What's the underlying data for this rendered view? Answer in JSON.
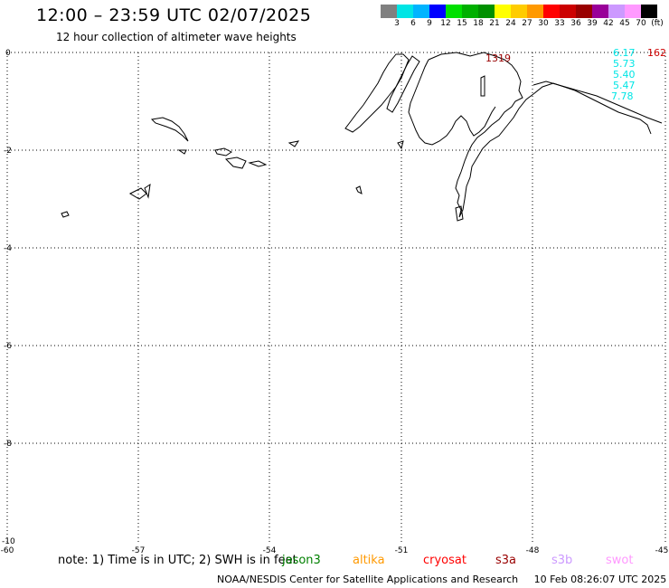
{
  "header": {
    "title": "12:00 – 23:59 UTC 02/07/2025",
    "subtitle": "12 hour collection of altimeter wave heights"
  },
  "color_scale": {
    "colors": [
      "#808080",
      "#00e5e5",
      "#00b4ff",
      "#0000ff",
      "#00e000",
      "#00b000",
      "#009000",
      "#ffff00",
      "#ffcc00",
      "#ff9900",
      "#ff0000",
      "#cc0000",
      "#990000",
      "#990099",
      "#cc99ff",
      "#ff99ff",
      "#000000"
    ],
    "ticks": [
      "3",
      "6",
      "9",
      "12",
      "15",
      "18",
      "21",
      "24",
      "27",
      "30",
      "33",
      "36",
      "39",
      "42",
      "45",
      "70",
      "(ft)"
    ]
  },
  "map": {
    "x_ticks": [
      "-60",
      "-57",
      "-54",
      "-51",
      "-48",
      "-45"
    ],
    "y_ticks": [
      "0",
      "-2",
      "-4",
      "-6",
      "-8",
      "-10"
    ],
    "wave_labels": [
      {
        "text": "1319",
        "color": "#990000"
      },
      {
        "text": "162",
        "color": "#cc0000"
      },
      {
        "text": "6.17",
        "color": "#00e5e5"
      },
      {
        "text": "5.73",
        "color": "#00e5e5"
      },
      {
        "text": "5.40",
        "color": "#00e5e5"
      },
      {
        "text": "5.47",
        "color": "#00e5e5"
      },
      {
        "text": "7.78",
        "color": "#00e5e5"
      }
    ]
  },
  "note": "note: 1) Time is in UTC; 2) SWH is in feet",
  "satellites": [
    {
      "name": "jason3",
      "color": "#008000"
    },
    {
      "name": "altika",
      "color": "#ff9900"
    },
    {
      "name": "cryosat",
      "color": "#ff0000"
    },
    {
      "name": "s3a",
      "color": "#990000"
    },
    {
      "name": "s3b",
      "color": "#cc99ff"
    },
    {
      "name": "swot",
      "color": "#ff99ff"
    }
  ],
  "footer": {
    "credit": "NOAA/NESDIS Center for Satellite Applications and Research",
    "timestamp": "10 Feb 08:26:07 UTC 2025"
  }
}
